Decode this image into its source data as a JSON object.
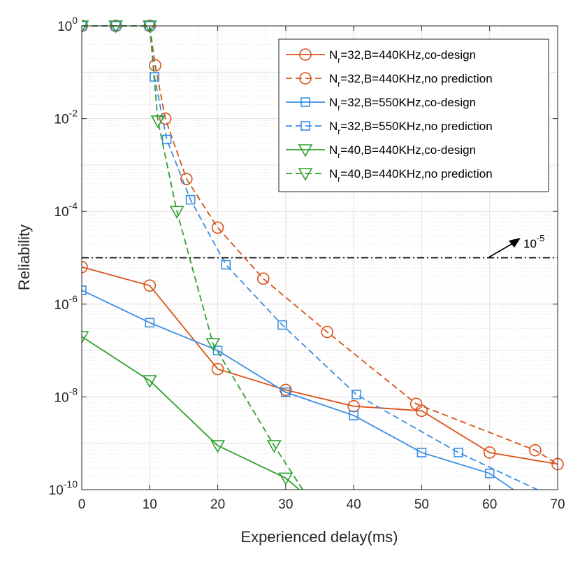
{
  "chart_data": {
    "type": "line",
    "title": "",
    "xlabel": "Experienced delay(ms)",
    "ylabel": "Reliability",
    "xlim": [
      0,
      70
    ],
    "ylim_log10": [
      -10,
      0
    ],
    "y_scale": "log",
    "x_ticks": [
      "0",
      "10",
      "20",
      "30",
      "40",
      "50",
      "60",
      "70"
    ],
    "y_ticks": [
      {
        "base": "10",
        "exp": "-10"
      },
      {
        "base": "10",
        "exp": "-8"
      },
      {
        "base": "10",
        "exp": "-6"
      },
      {
        "base": "10",
        "exp": "-4"
      },
      {
        "base": "10",
        "exp": "-2"
      },
      {
        "base": "10",
        "exp": "0"
      }
    ],
    "grid": true,
    "legend_position": "top-right",
    "threshold": {
      "value_log10": -5,
      "label_base": "10",
      "label_exp": "-5"
    },
    "series": [
      {
        "name": "N_r=32,B=440KHz,co-design",
        "legend": {
          "pre": "N",
          "sub": "r",
          "post": "=32,B=440KHz,co-design"
        },
        "color": "#d95319",
        "dash": "solid",
        "marker": "circle",
        "x": [
          0,
          10,
          20,
          30,
          40,
          50,
          60,
          70
        ],
        "log10_y": [
          -5.2,
          -5.6,
          -7.4,
          -7.85,
          -8.2,
          -8.3,
          -9.2,
          -9.45
        ]
      },
      {
        "name": "N_r=32,B=440KHz,no prediction",
        "legend": {
          "pre": "N",
          "sub": "r",
          "post": "=32,B=440KHz,no prediction"
        },
        "color": "#d95319",
        "dash": "dashed",
        "marker": "circle",
        "x": [
          0,
          5,
          10,
          10.8,
          12.3,
          15.4,
          20,
          26.7,
          36.1,
          49.2,
          66.7,
          70
        ],
        "log10_y": [
          0,
          0,
          0,
          -0.85,
          -2.0,
          -3.3,
          -4.35,
          -5.45,
          -6.6,
          -8.15,
          -9.15,
          -9.45
        ],
        "marker_indices": [
          0,
          1,
          2,
          3,
          4,
          5,
          6,
          7,
          8,
          9,
          10
        ]
      },
      {
        "name": "N_r=32,B=550KHz,co-design",
        "legend": {
          "pre": "N",
          "sub": "r",
          "post": "=32,B=550KHz,co-design"
        },
        "color": "#3a8ee6",
        "dash": "solid",
        "marker": "square",
        "x": [
          0,
          10,
          20,
          30,
          40,
          50,
          60,
          63.5
        ],
        "log10_y": [
          -5.7,
          -6.4,
          -7.0,
          -7.9,
          -8.4,
          -9.2,
          -9.65,
          -10
        ],
        "marker_indices": [
          0,
          1,
          2,
          3,
          4,
          5,
          6
        ]
      },
      {
        "name": "N_r=32,B=550KHz,no prediction",
        "legend": {
          "pre": "N",
          "sub": "r",
          "post": "=32,B=550KHz,no prediction"
        },
        "color": "#3a8ee6",
        "dash": "dashed",
        "marker": "square",
        "x": [
          0,
          5,
          10,
          10.7,
          12.5,
          16,
          21.2,
          29.5,
          40.4,
          55.4,
          67
        ],
        "log10_y": [
          0,
          0,
          0,
          -1.1,
          -2.45,
          -3.75,
          -5.15,
          -6.45,
          -7.95,
          -9.2,
          -10
        ],
        "marker_indices": [
          0,
          1,
          2,
          3,
          4,
          5,
          6,
          7,
          8,
          9
        ]
      },
      {
        "name": "N_r=40,B=440KHz,co-design",
        "legend": {
          "pre": "N",
          "sub": "r",
          "post": "=40,B=440KHz,co-design"
        },
        "color": "#2ca02c",
        "dash": "solid",
        "marker": "triangle-down",
        "x": [
          0,
          10,
          20,
          30,
          32
        ],
        "log10_y": [
          -6.7,
          -7.65,
          -9.05,
          -9.75,
          -10
        ],
        "marker_indices": [
          0,
          1,
          2,
          3
        ]
      },
      {
        "name": "N_r=40,B=440KHz,no prediction",
        "legend": {
          "pre": "N",
          "sub": "r",
          "post": "=40,B=440KHz,no prediction"
        },
        "color": "#2ca02c",
        "dash": "dashed",
        "marker": "triangle-down",
        "x": [
          0,
          5,
          10,
          11.2,
          14,
          19.3,
          28.3,
          32.5
        ],
        "log10_y": [
          0,
          0,
          0,
          -2.05,
          -4.0,
          -6.85,
          -9.05,
          -10
        ],
        "marker_indices": [
          0,
          1,
          2,
          3,
          4,
          5,
          6
        ]
      }
    ]
  }
}
